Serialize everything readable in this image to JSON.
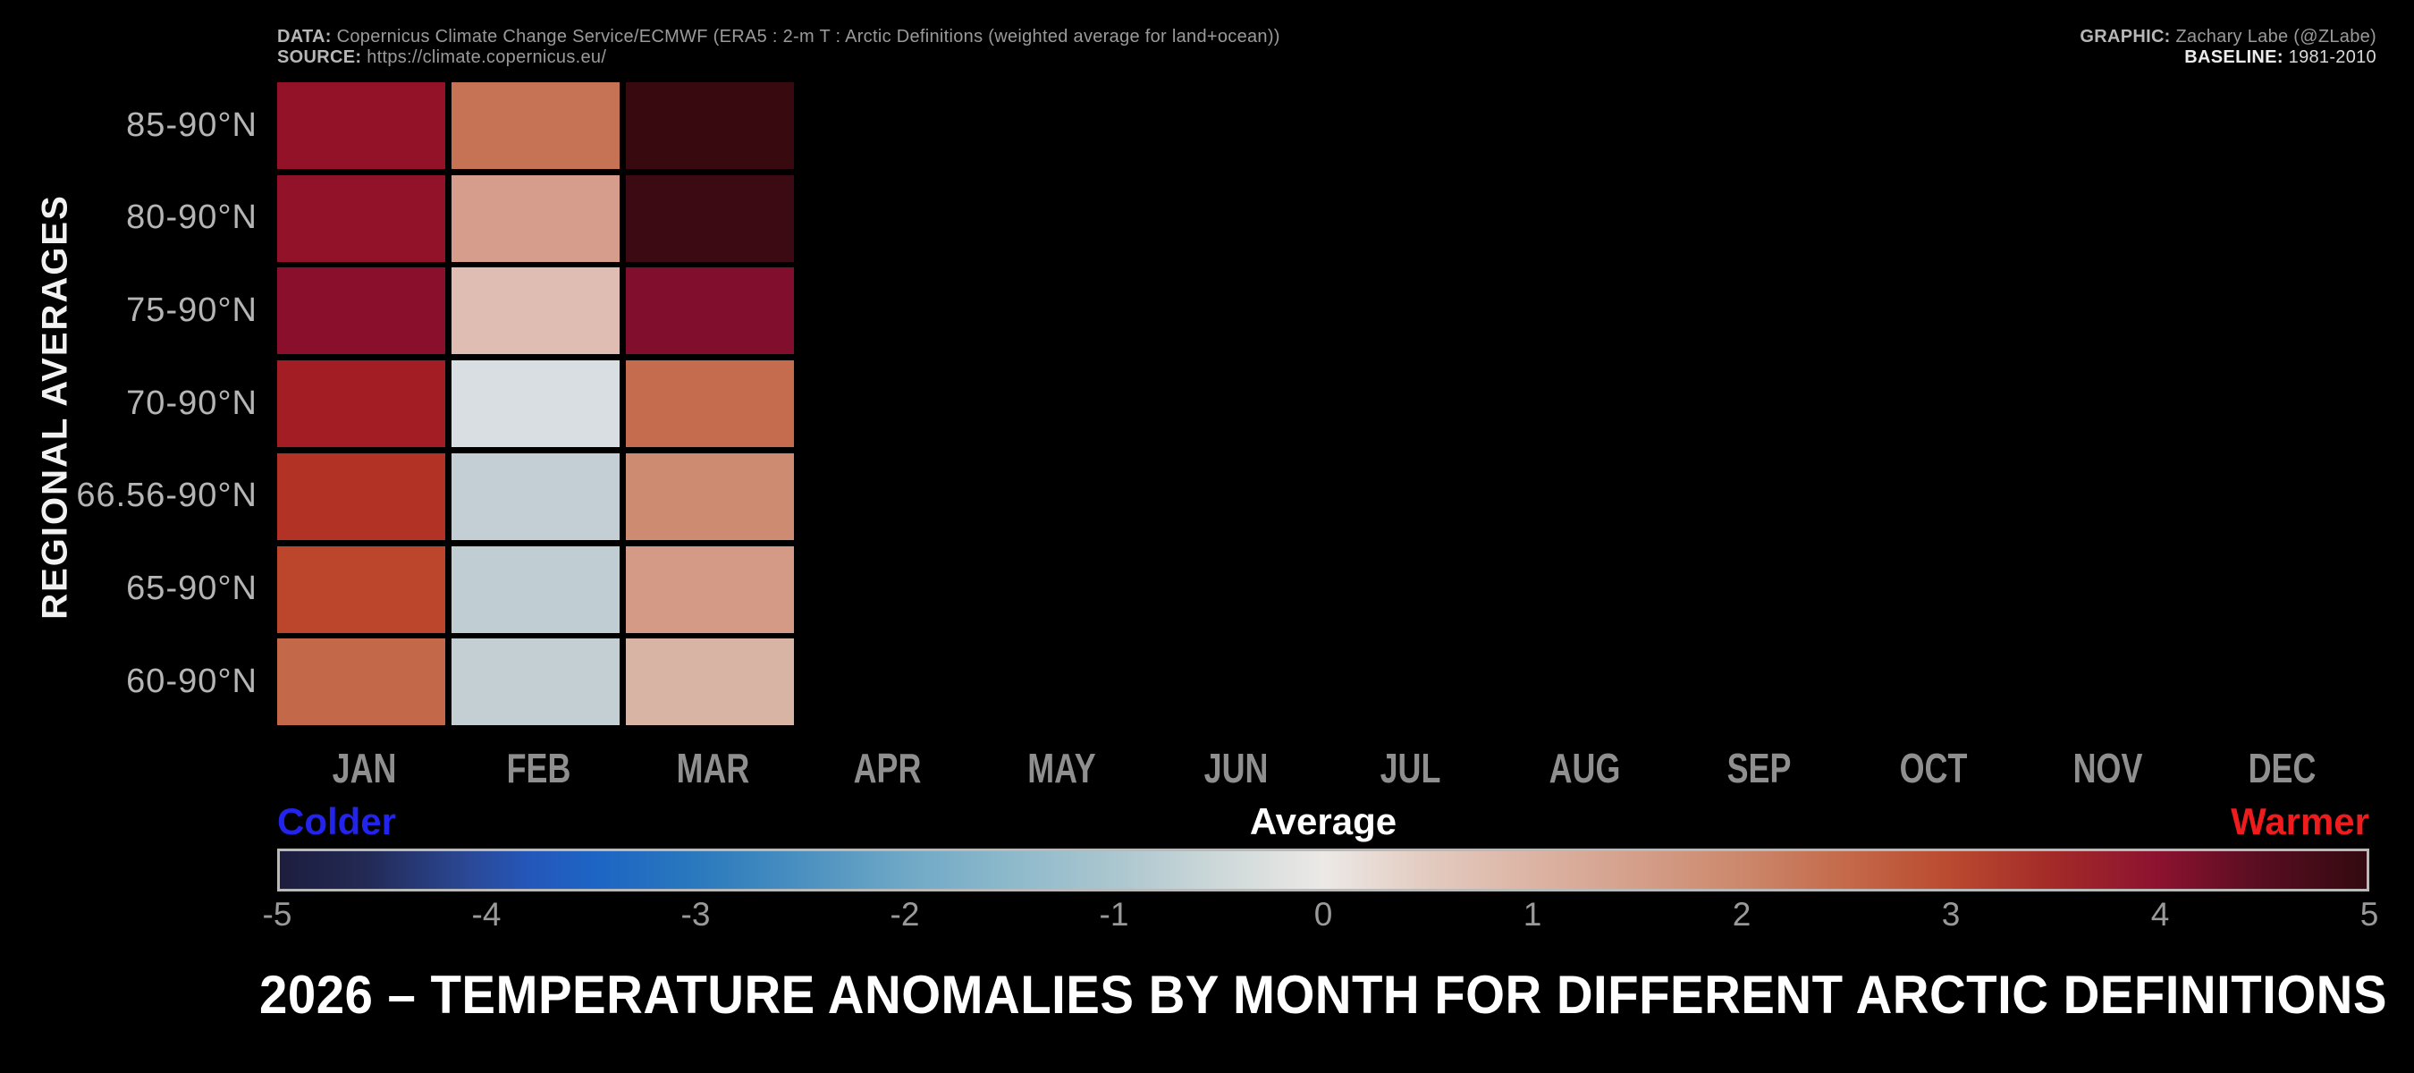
{
  "header": {
    "data_label": "DATA:",
    "data_text": "Copernicus Climate Change Service/ECMWF (ERA5 : 2-m T : Arctic Definitions (weighted average for land+ocean))",
    "source_label": "SOURCE:",
    "source_text": "https://climate.copernicus.eu/",
    "graphic_label": "GRAPHIC:",
    "graphic_text": "Zachary Labe (@ZLabe)",
    "baseline_label": "BASELINE:",
    "baseline_text": "1981-2010"
  },
  "y_axis_title": "REGIONAL AVERAGES",
  "title": "2026 – TEMPERATURE ANOMALIES BY MONTH FOR DIFFERENT ARCTIC DEFINITIONS",
  "colorbar": {
    "label_left": "Colder",
    "label_center": "Average",
    "label_right": "Warmer",
    "label_left_color": "#2323ee",
    "label_center_color": "#ffffff",
    "label_right_color": "#ee1c1c",
    "ticks": [
      "-5",
      "-4",
      "-3",
      "-2",
      "-1",
      "0",
      "1",
      "2",
      "3",
      "4",
      "5"
    ]
  },
  "chart_data": {
    "type": "heatmap",
    "title": "2026 – TEMPERATURE ANOMALIES BY MONTH FOR DIFFERENT ARCTIC DEFINITIONS",
    "year": "2026",
    "categories": [
      "JAN",
      "FEB",
      "MAR",
      "APR",
      "MAY",
      "JUN",
      "JUL",
      "AUG",
      "SEP",
      "OCT",
      "NOV",
      "DEC"
    ],
    "rows": [
      "85-90°N",
      "80-90°N",
      "75-90°N",
      "70-90°N",
      "66.56-90°N",
      "65-90°N",
      "60-90°N"
    ],
    "months_with_data": [
      "JAN",
      "FEB",
      "MAR"
    ],
    "values_estimated_from_color": [
      [
        3.9,
        2.3,
        4.9
      ],
      [
        3.9,
        1.5,
        4.8
      ],
      [
        4.0,
        0.9,
        4.2
      ],
      [
        3.6,
        -0.4,
        2.4
      ],
      [
        3.2,
        -0.8,
        2.0
      ],
      [
        2.9,
        -0.9,
        1.6
      ],
      [
        2.5,
        -0.8,
        1.0
      ]
    ],
    "cell_colors": [
      [
        "#931227",
        "#c57354",
        "#380a10"
      ],
      [
        "#92122a",
        "#d69c8c",
        "#3c0a12"
      ],
      [
        "#8a0f2c",
        "#dfbdb2",
        "#800e2c"
      ],
      [
        "#a31d24",
        "#d8dee1",
        "#c66c4e"
      ],
      [
        "#b23326",
        "#c4cfd5",
        "#cd8b71"
      ],
      [
        "#bc462c",
        "#c0cdd3",
        "#d59a85"
      ],
      [
        "#c4684a",
        "#c4cfd4",
        "#d8b4a5"
      ]
    ],
    "value_range": [
      -5,
      5
    ],
    "xlabel": "",
    "ylabel": "REGIONAL AVERAGES",
    "legend": "colorbar bottom, Colder (blue) to Warmer (red), Average at 0",
    "grid": false
  }
}
